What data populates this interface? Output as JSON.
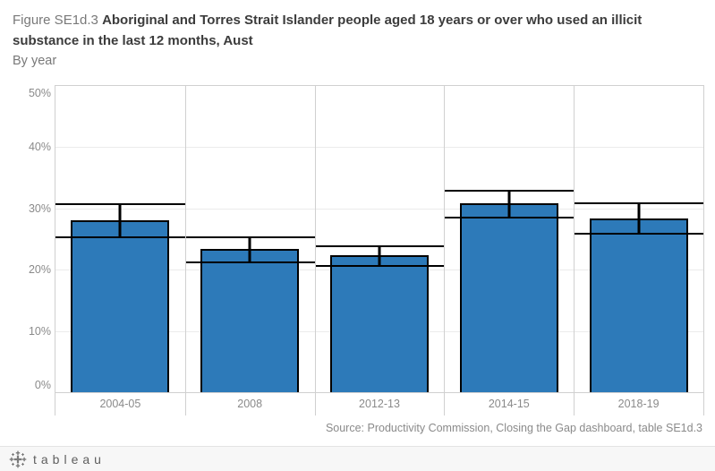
{
  "title": {
    "prefix": "Figure SE1d.3 ",
    "main": "Aboriginal and Torres Strait Islander people aged 18 years or over who used an illicit substance in the last 12 months, Aust",
    "byline": "By year"
  },
  "source": "Source: Productivity Commission, Closing the Gap dashboard, table SE1d.3",
  "footer": {
    "wordmark": "tableau",
    "logo_icon": "tableau-plus-cluster-icon"
  },
  "colors": {
    "bar": "#2d7ab9",
    "bar_border": "#000000",
    "error_bar": "#000000",
    "gridline": "#ebebeb",
    "axis_line": "#d0d0d0",
    "tick_label": "#8a8a8a",
    "title_main": "#3c3c3c",
    "title_muted": "#797979",
    "footer_bg": "#f7f7f7",
    "footer_text": "#5f5f5f"
  },
  "chart_data": {
    "type": "bar",
    "title": "Figure SE1d.3 Aboriginal and Torres Strait Islander people aged 18 years or over who used an illicit substance in the last 12 months, Aust",
    "subtitle": "By year",
    "categories": [
      "2004-05",
      "2008",
      "2012-13",
      "2014-15",
      "2018-19"
    ],
    "values": [
      28.0,
      23.4,
      22.4,
      30.8,
      28.4
    ],
    "error_low": [
      25.4,
      21.3,
      20.7,
      28.7,
      26.0
    ],
    "error_high": [
      30.8,
      25.4,
      24.0,
      33.1,
      31.0
    ],
    "yticks": [
      0,
      10,
      20,
      30,
      40,
      50
    ],
    "ytick_format": "percent",
    "ylim": [
      0,
      50
    ],
    "xlabel": "",
    "ylabel": "",
    "grid": true,
    "legend": false,
    "bar_color": "#2d7ab9",
    "error_bar_style": "full-column-width-caps"
  }
}
